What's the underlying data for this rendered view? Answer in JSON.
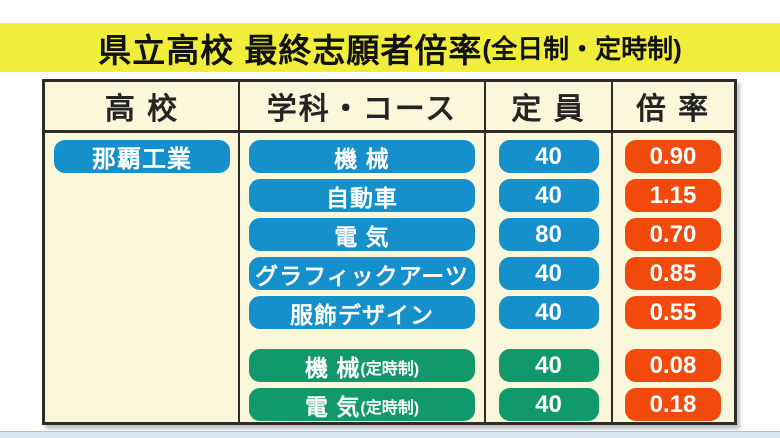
{
  "banner": {
    "title": "県立高校 最終志願者倍率",
    "subtitle": "(全日制・定時制)",
    "bg_color": "#f1ee3b",
    "text_color": "#111111"
  },
  "table": {
    "bg_color": "#faf7da",
    "border_color": "#2e2c29",
    "headers": [
      "高 校",
      "学科・コース",
      "定 員",
      "倍 率"
    ],
    "school": "那覇工業",
    "pill_colors": {
      "blue": "#1590ca",
      "green": "#12996b",
      "orange": "#f24a0d"
    },
    "rows": [
      {
        "course": "機 械",
        "course_suffix": "",
        "capacity": "40",
        "ratio": "0.90",
        "variant": "blue",
        "section_start": false
      },
      {
        "course": "自動車",
        "course_suffix": "",
        "capacity": "40",
        "ratio": "1.15",
        "variant": "blue",
        "section_start": false
      },
      {
        "course": "電 気",
        "course_suffix": "",
        "capacity": "80",
        "ratio": "0.70",
        "variant": "blue",
        "section_start": false
      },
      {
        "course": "グラフィックアーツ",
        "course_suffix": "",
        "capacity": "40",
        "ratio": "0.85",
        "variant": "blue",
        "section_start": false
      },
      {
        "course": "服飾デザイン",
        "course_suffix": "",
        "capacity": "40",
        "ratio": "0.55",
        "variant": "blue",
        "section_start": false
      },
      {
        "course": "機 械",
        "course_suffix": "(定時制)",
        "capacity": "40",
        "ratio": "0.08",
        "variant": "green",
        "section_start": true
      },
      {
        "course": "電 気",
        "course_suffix": "(定時制)",
        "capacity": "40",
        "ratio": "0.18",
        "variant": "green",
        "section_start": false
      }
    ]
  },
  "chart_data": {
    "type": "table",
    "title": "県立高校 最終志願者倍率(全日制・定時制)",
    "columns": [
      "高校",
      "学科・コース",
      "定員",
      "倍率"
    ],
    "rows": [
      [
        "那覇工業",
        "機械",
        40,
        0.9
      ],
      [
        "那覇工業",
        "自動車",
        40,
        1.15
      ],
      [
        "那覇工業",
        "電気",
        80,
        0.7
      ],
      [
        "那覇工業",
        "グラフィックアーツ",
        40,
        0.85
      ],
      [
        "那覇工業",
        "服飾デザイン",
        40,
        0.55
      ],
      [
        "那覇工業",
        "機械(定時制)",
        40,
        0.08
      ],
      [
        "那覇工業",
        "電気(定時制)",
        40,
        0.18
      ]
    ]
  }
}
